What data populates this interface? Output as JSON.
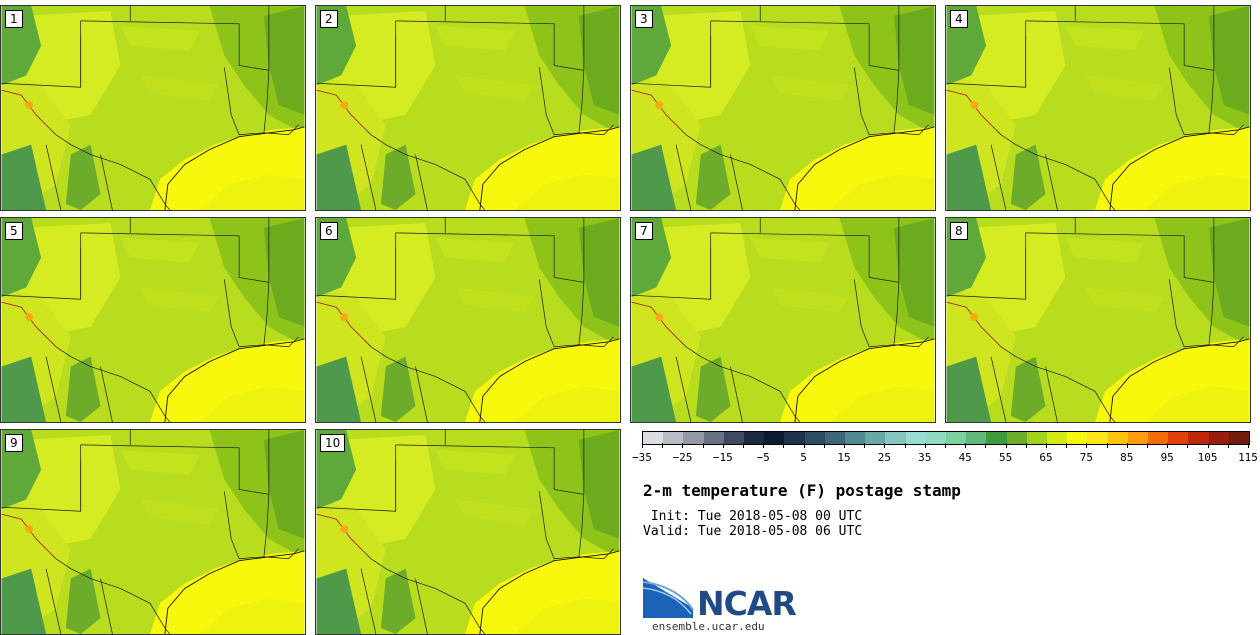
{
  "panels": [
    {
      "label": "1"
    },
    {
      "label": "2"
    },
    {
      "label": "3"
    },
    {
      "label": "4"
    },
    {
      "label": "5"
    },
    {
      "label": "6"
    },
    {
      "label": "7"
    },
    {
      "label": "8"
    },
    {
      "label": "9"
    },
    {
      "label": "10"
    }
  ],
  "colorbar": {
    "colors": [
      "#dcdde2",
      "#b9bcc4",
      "#9298a5",
      "#6a7182",
      "#3e4a5e",
      "#1e2a40",
      "#0c1a2e",
      "#1f324a",
      "#2f4d62",
      "#3d6677",
      "#4e8a8f",
      "#6aa7a7",
      "#86c6c1",
      "#97ddd2",
      "#8fdcc3",
      "#7dd0a2",
      "#5fba79",
      "#3f9a3d",
      "#6cad2a",
      "#a2d21c",
      "#d3ea14",
      "#f7f812",
      "#fde613",
      "#fdc40d",
      "#fc9b0b",
      "#f56b06",
      "#e0400a",
      "#c0260a",
      "#9b1c0c",
      "#721c0e"
    ],
    "tick_labels": [
      "−35",
      "−25",
      "−15",
      "−5",
      "5",
      "15",
      "25",
      "35",
      "45",
      "55",
      "65",
      "75",
      "85",
      "95",
      "105",
      "115"
    ]
  },
  "title": "2-m temperature (F) postage stamp",
  "init_line": " Init: Tue 2018-05-08 00 UTC",
  "valid_line": "Valid: Tue 2018-05-08 06 UTC",
  "logo": {
    "text": "NCAR",
    "url": "ensemble.ucar.edu"
  }
}
